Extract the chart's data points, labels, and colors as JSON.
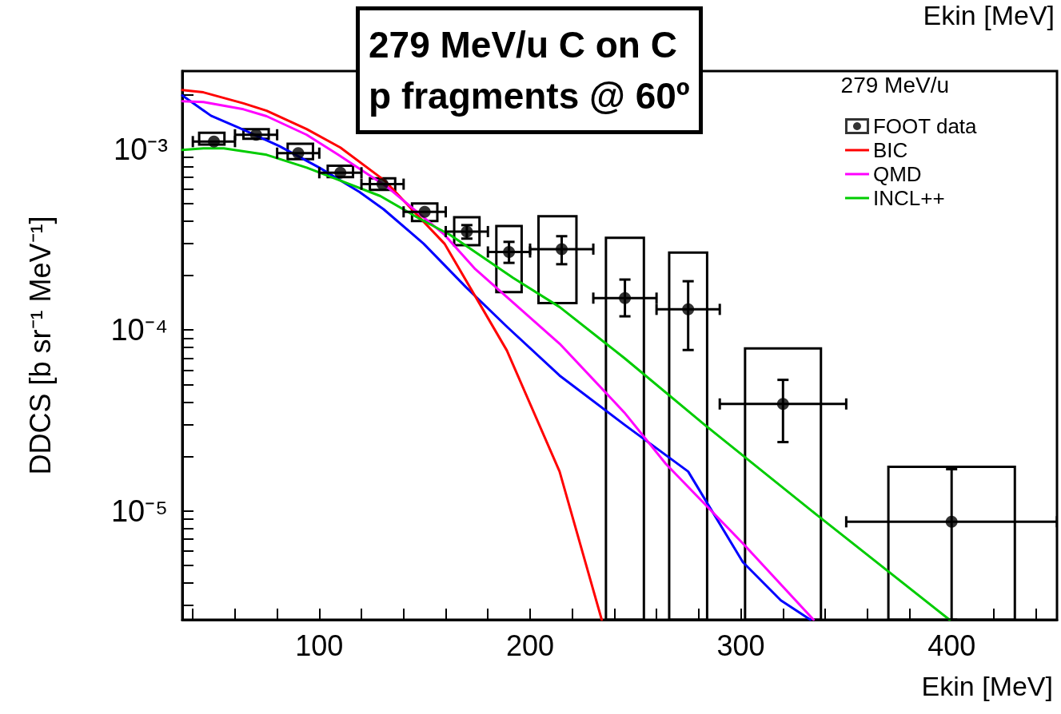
{
  "chart_data": {
    "type": "line",
    "title": "279 MeV/u C on C\np fragments @ 60º",
    "xlabel": "Ekin [MeV]",
    "ylabel": "DDCS [b sr⁻¹ MeV⁻¹]",
    "legend_title": "279 MeV/u",
    "annotations": [
      "Ekin [MeV]"
    ],
    "log": "y",
    "legend": "top right",
    "marker": "none",
    "xlim": [
      35,
      450
    ],
    "ylim": [
      2.5e-06,
      0.0027
    ],
    "xticks": [
      {
        "value": 40,
        "label": null
      },
      {
        "value": 60,
        "label": null
      },
      {
        "value": 80,
        "label": null
      },
      100,
      {
        "value": 120,
        "label": null
      },
      {
        "value": 140,
        "label": null
      },
      {
        "value": 160,
        "label": null
      },
      {
        "value": 180,
        "label": null
      },
      200,
      {
        "value": 220,
        "label": null
      },
      {
        "value": 240,
        "label": null
      },
      {
        "value": 260,
        "label": null
      },
      {
        "value": 280,
        "label": null
      },
      300,
      {
        "value": 320,
        "label": null
      },
      {
        "value": 340,
        "label": null
      },
      {
        "value": 360,
        "label": null
      },
      {
        "value": 380,
        "label": null
      },
      400,
      {
        "value": 420,
        "label": null
      },
      {
        "value": 440,
        "label": null
      }
    ],
    "yticks": [
      {
        "value": 3e-06,
        "label": null
      },
      {
        "value": 4e-06,
        "label": null
      },
      {
        "value": 5e-06,
        "label": null
      },
      {
        "value": 6e-06,
        "label": null
      },
      {
        "value": 7e-06,
        "label": null
      },
      {
        "value": 8e-06,
        "label": null
      },
      {
        "value": 9e-06,
        "label": null
      },
      {
        "value": 1e-05,
        "label": "10⁻⁵"
      },
      {
        "value": 2e-05,
        "label": null
      },
      {
        "value": 3e-05,
        "label": null
      },
      {
        "value": 4e-05,
        "label": null
      },
      {
        "value": 5e-05,
        "label": null
      },
      {
        "value": 6e-05,
        "label": null
      },
      {
        "value": 7e-05,
        "label": null
      },
      {
        "value": 8e-05,
        "label": null
      },
      {
        "value": 9e-05,
        "label": null
      },
      {
        "value": 0.0001,
        "label": "10⁻⁴"
      },
      {
        "value": 0.0002,
        "label": null
      },
      {
        "value": 0.0003,
        "label": null
      },
      {
        "value": 0.0004,
        "label": null
      },
      {
        "value": 0.0005,
        "label": null
      },
      {
        "value": 0.0006,
        "label": null
      },
      {
        "value": 0.0007,
        "label": null
      },
      {
        "value": 0.0008,
        "label": null
      },
      {
        "value": 0.0009,
        "label": null
      },
      {
        "value": 0.001,
        "label": "10⁻³"
      },
      {
        "value": 0.002,
        "label": null
      }
    ],
    "series": [
      {
        "name": "FOOT data",
        "type": "scatter",
        "marker": "circle",
        "color": "#000000",
        "x": [
          50,
          70,
          90,
          110,
          130,
          150,
          170,
          190,
          215,
          245,
          275,
          320,
          400
        ],
        "values": [
          0.0011,
          0.0012,
          0.00095,
          0.00074,
          0.00064,
          0.00045,
          0.00035,
          0.00027,
          0.00028,
          0.00015,
          0.00013,
          3.9e-05,
          8.7e-06
        ],
        "errors": [
          null,
          null,
          null,
          null,
          null,
          null,
          [
            0.00032,
            0.00038
          ],
          [
            0.000235,
            0.000307
          ],
          [
            0.000231,
            0.00033
          ],
          [
            0.000119,
            0.00019
          ],
          [
            7.75e-05,
            0.000186
          ],
          [
            2.4e-05,
            5.3e-05
          ],
          [
            2.5e-06,
            1.7e-05
          ]
        ],
        "xerrors": [
          10,
          10,
          10,
          10,
          10,
          10,
          10,
          10,
          15,
          15,
          15,
          30,
          50
        ]
      },
      {
        "type": "bar",
        "color": "#000000",
        "x": [
          49,
          70,
          91,
          110,
          130,
          150,
          170,
          190,
          213,
          245,
          275,
          320,
          400
        ],
        "base": [
          0.00106,
          0.00114,
          0.00088,
          0.0007,
          0.000595,
          0.0004,
          0.000294,
          0.000162,
          0.000141,
          2.5e-06,
          2.5e-06,
          2.5e-06,
          2.5e-06
        ],
        "values": [
          0.00017,
          0.00015,
          0.00019,
          0.00011,
          9.5e-05,
          0.0001,
          0.000126,
          0.000214,
          0.000284,
          0.0003205,
          0.0002655,
          7.65e-05,
          1.5e-05
        ]
      },
      {
        "color": "#0000ff",
        "x": [
          35,
          48.6,
          62,
          81,
          100,
          119,
          130.5,
          149.5,
          169.7,
          189.5,
          214,
          244.7,
          275,
          301,
          319,
          333
        ],
        "values": [
          0.00198,
          0.00153,
          0.00131,
          0.00104,
          0.00079,
          0.00058,
          0.000465,
          0.0003,
          0.000172,
          0.000103,
          5.6e-05,
          3e-05,
          1.65e-05,
          5.2e-06,
          3.2e-06,
          2.5e-06
        ]
      },
      {
        "name": "BIC",
        "color": "#ff0000",
        "x": [
          35,
          45,
          64,
          75,
          94,
          110,
          131,
          159.4,
          189,
          214,
          234
        ],
        "values": [
          0.00212,
          0.00206,
          0.00179,
          0.00163,
          0.00129,
          0.00102,
          0.00067,
          0.0003,
          7.7e-05,
          1.65e-05,
          2.5e-06
        ]
      },
      {
        "name": "QMD",
        "color": "#ff00ff",
        "x": [
          35,
          45,
          64,
          75,
          94,
          109,
          132,
          159.4,
          174,
          214,
          244.7,
          264.4,
          301,
          334.5
        ],
        "values": [
          0.00184,
          0.00182,
          0.00166,
          0.00152,
          0.0012,
          0.00093,
          0.00062,
          0.000336,
          0.000217,
          8.4e-05,
          3.5e-05,
          1.82e-05,
          6.6e-06,
          2.5e-06
        ]
      },
      {
        "name": "INCL++",
        "color": "#00cc00",
        "x": [
          35,
          45,
          54.7,
          75,
          94,
          110,
          129,
          147,
          162,
          192,
          214,
          244.7,
          282.7,
          336,
          399
        ],
        "values": [
          0.00099,
          0.00101,
          0.00101,
          0.00093,
          0.00079,
          0.00067,
          0.00055,
          0.000416,
          0.000336,
          0.000194,
          0.000134,
          7e-05,
          3e-05,
          9.5e-06,
          2.5e-06
        ]
      }
    ]
  }
}
